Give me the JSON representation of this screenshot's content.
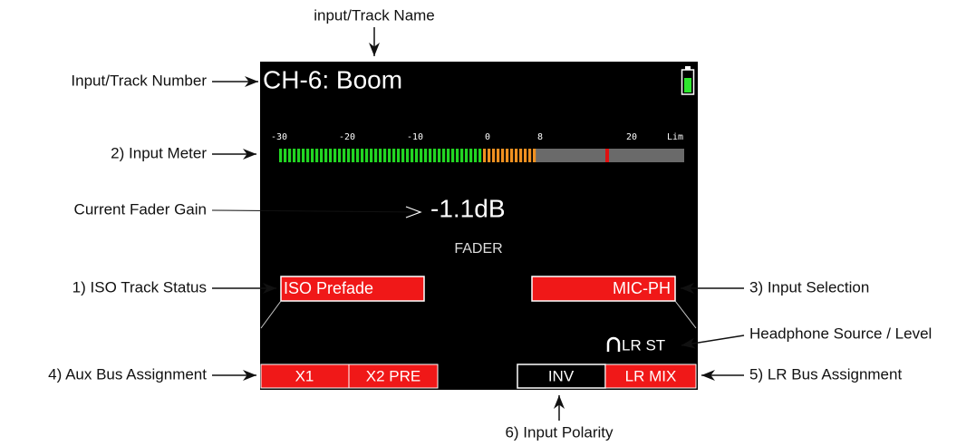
{
  "screen": {
    "track_title": "CH-6: Boom",
    "meter_scale": [
      "-30",
      "-20",
      "-10",
      "0",
      "8",
      "20",
      "Lim"
    ],
    "fader_gain": "-1.1dB",
    "fader_label": "FADER",
    "iso_status": "ISO Prefade",
    "input_selection": "MIC-PH",
    "headphone": "LR ST",
    "aux_buses": [
      "X1",
      "X2 PRE"
    ],
    "polarity": "INV",
    "lr_bus": "LR MIX"
  },
  "annotations": {
    "track_name": "input/Track Name",
    "track_number": "Input/Track Number",
    "input_meter": "2) Input Meter",
    "fader_gain": "Current Fader Gain",
    "iso_status": "1) ISO Track Status",
    "aux_bus": "4) Aux Bus Assignment",
    "input_selection": "3) Input Selection",
    "headphone": "Headphone Source / Level",
    "lr_bus": "5) LR Bus Assignment",
    "polarity": "6) Input Polarity"
  }
}
